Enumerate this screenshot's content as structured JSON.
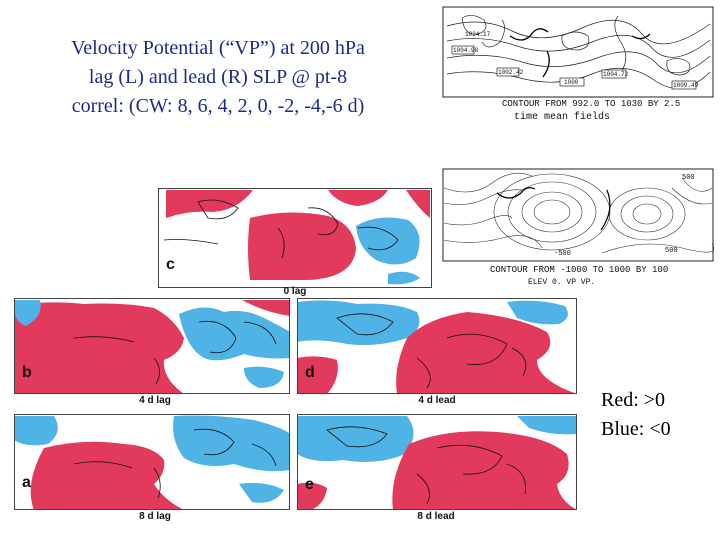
{
  "slide": {
    "title_lines": [
      "Velocity Potential (“VP”) at 200 hPa",
      "lag (L) and lead (R) SLP @ pt-8",
      "correl: (CW: 8, 6, 4, 2, 0, -2, -4,-6 d)"
    ],
    "legend": {
      "red": "Red: >0",
      "blue": "Blue: <0"
    }
  },
  "top_map": {
    "contour_text": "CONTOUR FROM 992.0 TO 1030 BY 2.5",
    "caption": "time mean fields",
    "numbers": [
      "1024.17",
      "1004.98",
      "1002.42",
      "1000",
      "1004.72",
      "1009.49"
    ]
  },
  "mid_map": {
    "contour_text": "CONTOUR FROM -1000 TO 1000 BY 100",
    "sub_text": "ELEV 0.        VP VP.",
    "numbers": [
      "500",
      "500",
      "-500"
    ]
  },
  "panels": [
    {
      "letter": "c",
      "label": "0 lag"
    },
    {
      "letter": "b",
      "label": "4 d lag"
    },
    {
      "letter": "d",
      "label": "4 d lead"
    },
    {
      "letter": "a",
      "label": "8 d lag"
    },
    {
      "letter": "e",
      "label": "8 d lead"
    }
  ],
  "colors": {
    "red": "#e23a5d",
    "blue": "#4fb3e6",
    "title": "#1d2a8a"
  }
}
